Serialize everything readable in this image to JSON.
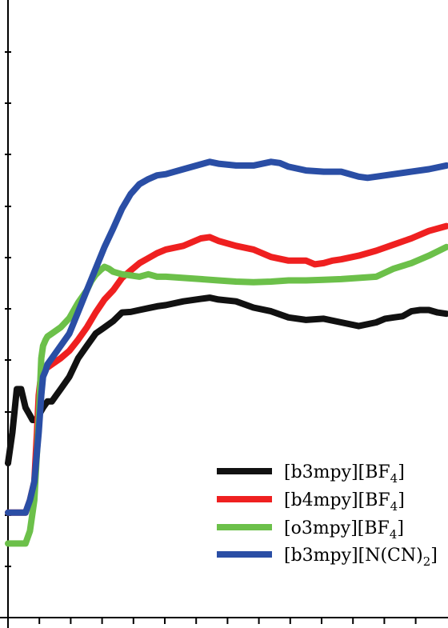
{
  "chart_data": {
    "type": "line",
    "title": "",
    "xlabel": "",
    "ylabel": "",
    "xlim": [
      0,
      100
    ],
    "ylim": [
      0,
      100
    ],
    "grid": false,
    "legend_position": "bottom-right",
    "series": [
      {
        "name_prefix": "[b3mpy][BF",
        "name_sub": "4",
        "name_suffix": "]",
        "color": "#111111",
        "x": [
          0,
          1,
          2,
          3,
          4,
          4.8,
          5.6,
          6.4,
          7.2,
          8,
          9,
          10,
          11,
          12,
          14,
          16,
          18,
          20,
          22,
          24,
          26,
          28,
          30,
          32,
          34,
          36,
          40,
          44,
          46,
          48,
          52,
          56,
          60,
          64,
          68,
          72,
          76,
          80,
          84,
          86,
          88,
          90,
          92,
          94,
          96,
          98,
          100
        ],
        "y": [
          25,
          30,
          37,
          37,
          34,
          33,
          32,
          32,
          33,
          34,
          35,
          35,
          36,
          37,
          39,
          42,
          44,
          46,
          47,
          48,
          49.4,
          49.5,
          49.8,
          50.1,
          50.4,
          50.6,
          51.2,
          51.6,
          51.8,
          51.5,
          51.2,
          50.2,
          49.6,
          48.6,
          48.2,
          48.4,
          47.8,
          47.2,
          47.8,
          48.4,
          48.6,
          48.8,
          49.6,
          49.8,
          49.8,
          49.4,
          49.2
        ]
      },
      {
        "name_prefix": "[b4mpy][BF",
        "name_sub": "4",
        "name_suffix": "]",
        "color": "#ef2020",
        "x": [
          0,
          2,
          4,
          5,
          6,
          6.6,
          7,
          7.5,
          8,
          9,
          10,
          12,
          14,
          16,
          18,
          20,
          22,
          24,
          26,
          28,
          30,
          32,
          34,
          36,
          40,
          44,
          46,
          48,
          52,
          56,
          60,
          64,
          68,
          70,
          72,
          74,
          76,
          80,
          84,
          88,
          92,
          96,
          100
        ],
        "y": [
          17,
          17,
          17,
          19,
          22,
          30,
          36,
          39,
          40,
          40.5,
          41,
          42,
          43.2,
          45,
          47,
          49.4,
          51.5,
          53,
          55,
          56.2,
          57.4,
          58.2,
          59,
          59.6,
          60.2,
          61.4,
          61.6,
          61,
          60.2,
          59.6,
          58.4,
          57.8,
          57.8,
          57.2,
          57.4,
          57.8,
          58,
          58.6,
          59.4,
          60.4,
          61.4,
          62.6,
          63.4
        ]
      },
      {
        "name_prefix": "[o3mpy][BF",
        "name_sub": "4",
        "name_suffix": "]",
        "color": "#6cc04a",
        "x": [
          0,
          2,
          4,
          5,
          6,
          7,
          7.6,
          8,
          8.6,
          9,
          10,
          12,
          14,
          16,
          18,
          19,
          20,
          21,
          22,
          23,
          24,
          26,
          28,
          30,
          32,
          34,
          36,
          40,
          44,
          48,
          52,
          56,
          60,
          64,
          68,
          72,
          76,
          80,
          84,
          88,
          92,
          96,
          100
        ],
        "y": [
          12,
          12,
          12,
          14,
          19,
          32,
          42,
          44,
          45,
          45.5,
          46,
          47,
          48.5,
          51,
          53,
          54.5,
          55.5,
          56.2,
          56.8,
          56.5,
          56,
          55.6,
          55.4,
          55.2,
          55.6,
          55.2,
          55.2,
          55,
          54.8,
          54.6,
          54.4,
          54.3,
          54.4,
          54.6,
          54.6,
          54.7,
          54.8,
          55,
          55.2,
          56.5,
          57.4,
          58.6,
          60
        ]
      },
      {
        "name_prefix": "[b3mpy][N(CN)",
        "name_sub": "2",
        "name_suffix": "]",
        "color": "#2a4ea5",
        "x": [
          0,
          2,
          4,
          5,
          6,
          7,
          7.6,
          8,
          8.6,
          9,
          10,
          12,
          14,
          16,
          18,
          20,
          22,
          24,
          26,
          28,
          30,
          32,
          34,
          36,
          40,
          44,
          46,
          48,
          52,
          56,
          60,
          62,
          64,
          68,
          72,
          76,
          80,
          82,
          84,
          88,
          92,
          96,
          100
        ],
        "y": [
          17,
          17,
          17,
          19,
          22,
          30,
          36,
          39,
          40,
          41,
          42,
          44,
          46,
          49.5,
          53,
          56.5,
          60,
          63,
          66.2,
          68.6,
          70.2,
          71,
          71.6,
          71.8,
          72.6,
          73.4,
          73.8,
          73.5,
          73.2,
          73.2,
          73.8,
          73.6,
          73,
          72.4,
          72.2,
          72.2,
          71.4,
          71.2,
          71.4,
          71.8,
          72.2,
          72.6,
          73.2
        ]
      }
    ]
  }
}
